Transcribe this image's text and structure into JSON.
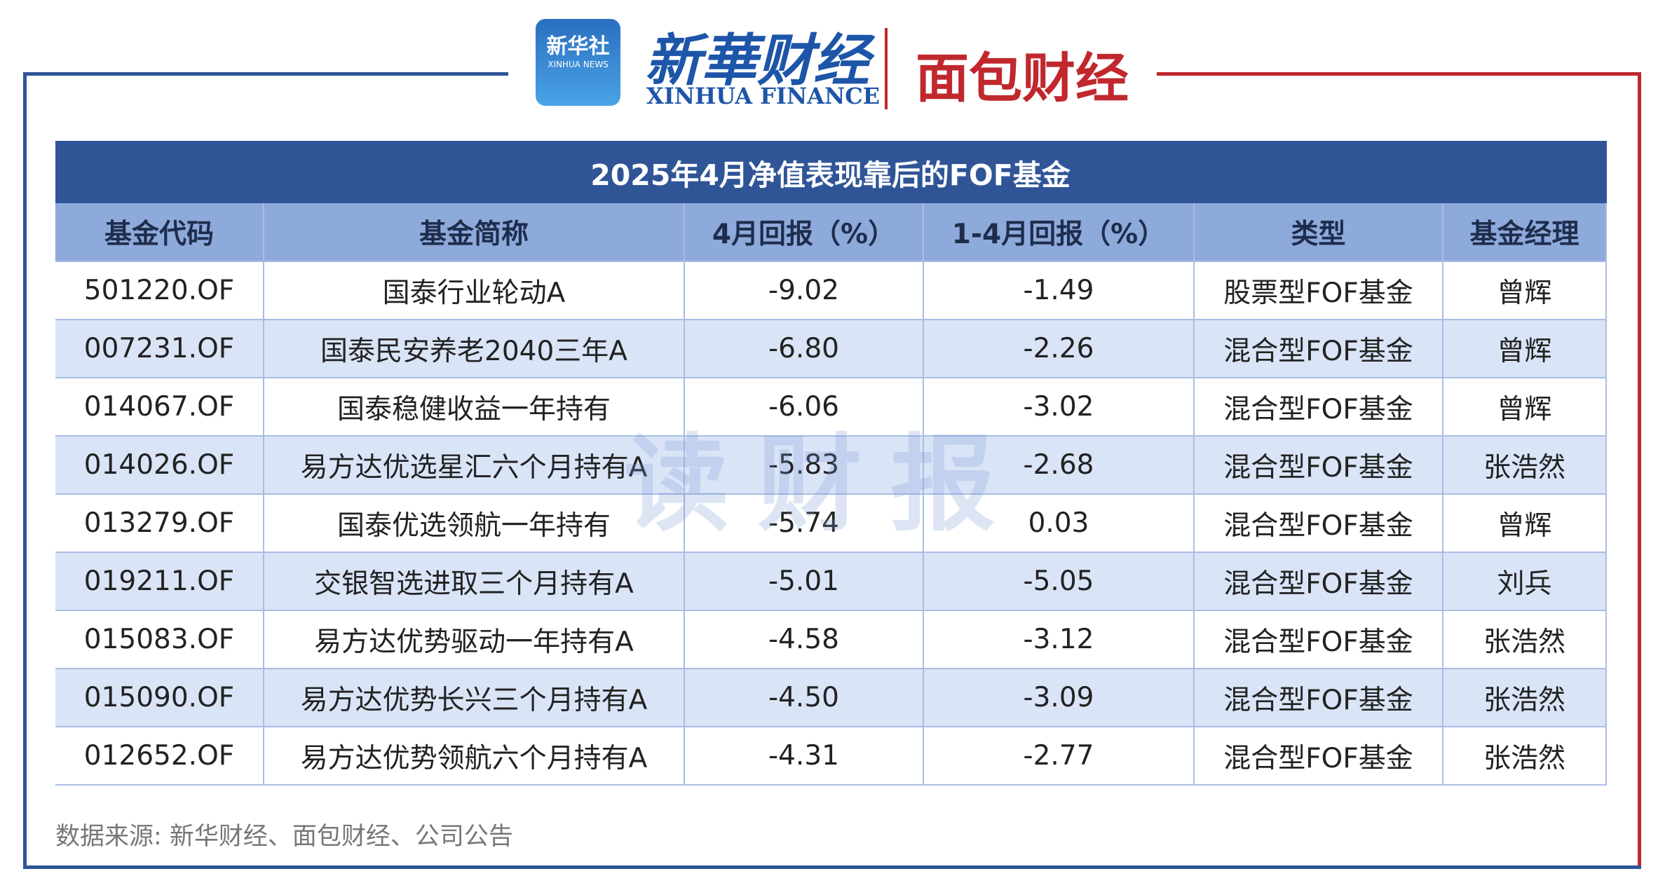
{
  "header": {
    "logo_cn": "新华社",
    "logo_en": "XINHUA NEWS",
    "brand_cn": "新華财经",
    "brand_en": "XINHUA FINANCE",
    "partner": "面包财经"
  },
  "watermark": "读财报",
  "table": {
    "title": "2025年4月净值表现靠后的FOF基金",
    "columns": [
      "基金代码",
      "基金简称",
      "4月回报（%）",
      "1-4月回报（%）",
      "类型",
      "基金经理"
    ],
    "rows": [
      [
        "501220.OF",
        "国泰行业轮动A",
        "-9.02",
        "-1.49",
        "股票型FOF基金",
        "曾辉"
      ],
      [
        "007231.OF",
        "国泰民安养老2040三年A",
        "-6.80",
        "-2.26",
        "混合型FOF基金",
        "曾辉"
      ],
      [
        "014067.OF",
        "国泰稳健收益一年持有",
        "-6.06",
        "-3.02",
        "混合型FOF基金",
        "曾辉"
      ],
      [
        "014026.OF",
        "易方达优选星汇六个月持有A",
        "-5.83",
        "-2.68",
        "混合型FOF基金",
        "张浩然"
      ],
      [
        "013279.OF",
        "国泰优选领航一年持有",
        "-5.74",
        "0.03",
        "混合型FOF基金",
        "曾辉"
      ],
      [
        "019211.OF",
        "交银智选进取三个月持有A",
        "-5.01",
        "-5.05",
        "混合型FOF基金",
        "刘兵"
      ],
      [
        "015083.OF",
        "易方达优势驱动一年持有A",
        "-4.58",
        "-3.12",
        "混合型FOF基金",
        "张浩然"
      ],
      [
        "015090.OF",
        "易方达优势长兴三个月持有A",
        "-4.50",
        "-3.09",
        "混合型FOF基金",
        "张浩然"
      ],
      [
        "012652.OF",
        "易方达优势领航六个月持有A",
        "-4.31",
        "-2.77",
        "混合型FOF基金",
        "张浩然"
      ]
    ]
  },
  "source": "数据来源: 新华财经、面包财经、公司公告"
}
